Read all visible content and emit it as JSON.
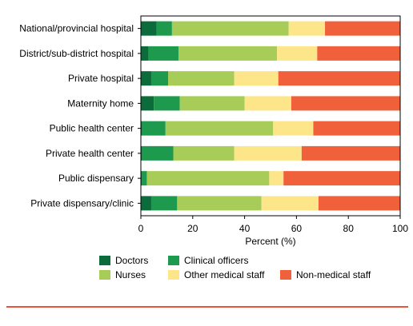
{
  "chart_data": {
    "type": "bar",
    "orientation": "horizontal",
    "stacked": true,
    "categories": [
      "National/provincial hospital",
      "District/sub-district hospital",
      "Private hospital",
      "Maternity home",
      "Public health center",
      "Private health center",
      "Public dispensary",
      "Private dispensary/clinic"
    ],
    "series": [
      {
        "name": "Doctors",
        "color": "#0b6b3a",
        "values": [
          6,
          3,
          4,
          5,
          0.5,
          0.5,
          0.3,
          4
        ]
      },
      {
        "name": "Clinical officers",
        "color": "#1e9a4e",
        "values": [
          6,
          11.5,
          6.5,
          10,
          9,
          12,
          2,
          10
        ]
      },
      {
        "name": "Nurses",
        "color": "#a7cc57",
        "values": [
          45,
          38,
          25.5,
          25,
          41.5,
          23.5,
          47.2,
          32.5
        ]
      },
      {
        "name": "Other medical staff",
        "color": "#fde68a",
        "values": [
          14,
          15.5,
          17,
          18,
          15.5,
          26,
          5.5,
          22
        ]
      },
      {
        "name": "Non-medical staff",
        "color": "#f0603a",
        "values": [
          29,
          32,
          47,
          42,
          33.5,
          38,
          45,
          31.5
        ]
      }
    ],
    "xlabel": "Percent (%)",
    "xlim": [
      0,
      100
    ],
    "xticks": [
      "0",
      "20",
      "40",
      "60",
      "80",
      "100"
    ],
    "grid": false,
    "legend_position": "bottom"
  }
}
